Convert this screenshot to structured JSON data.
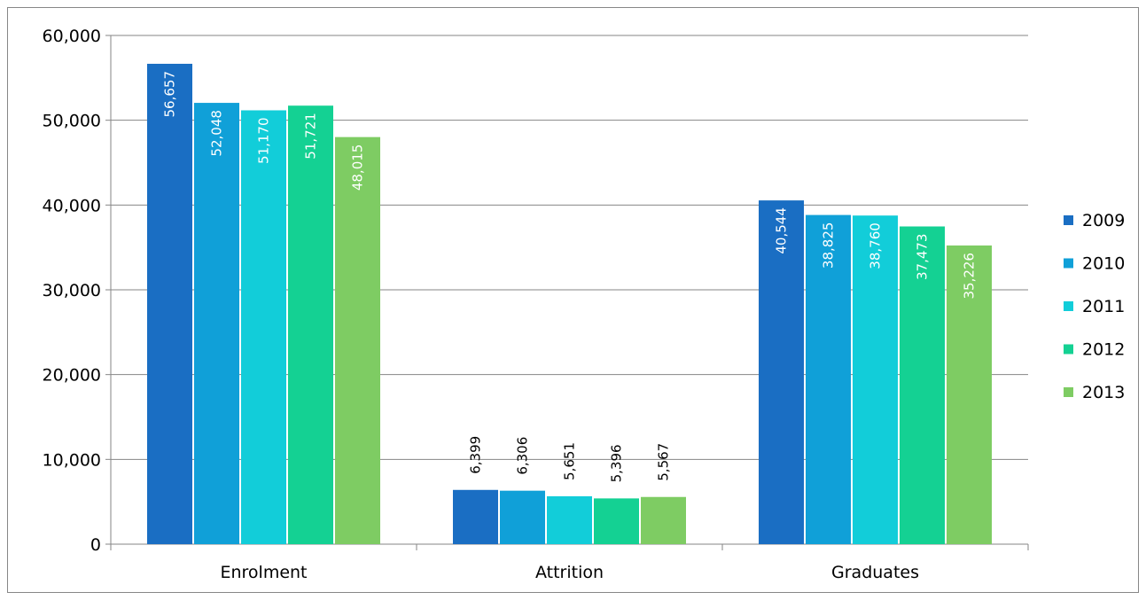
{
  "chart_data": {
    "type": "bar",
    "title": "",
    "xlabel": "",
    "ylabel": "",
    "categories": [
      "Enrolment",
      "Attrition",
      "Graduates"
    ],
    "series": [
      {
        "name": "2009",
        "color": "#1a6ec3",
        "values": [
          56657,
          6399,
          40544
        ],
        "labels": [
          "56,657",
          "6,399",
          "40,544"
        ]
      },
      {
        "name": "2010",
        "color": "#10a0d8",
        "values": [
          52048,
          6306,
          38825
        ],
        "labels": [
          "52,048",
          "6,306",
          "38,825"
        ]
      },
      {
        "name": "2011",
        "color": "#12cdd9",
        "values": [
          51170,
          5651,
          38760
        ],
        "labels": [
          "51,170",
          "5,651",
          "38,760"
        ]
      },
      {
        "name": "2012",
        "color": "#14d193",
        "values": [
          51721,
          5396,
          37473
        ],
        "labels": [
          "51,721",
          "5,396",
          "37,473"
        ]
      },
      {
        "name": "2013",
        "color": "#7ecc63",
        "values": [
          48015,
          5567,
          35226
        ],
        "labels": [
          "48,015",
          "5,567",
          "35,226"
        ]
      }
    ],
    "ylim": [
      0,
      60000
    ],
    "yticks": [
      0,
      10000,
      20000,
      30000,
      40000,
      50000,
      60000
    ],
    "ytick_labels": [
      "0",
      "10,000",
      "20,000",
      "30,000",
      "40,000",
      "50,000",
      "60,000"
    ],
    "grid": true,
    "legend_position": "right",
    "data_label_colors": {
      "inside": "#ffffff",
      "outside": "#000000"
    }
  }
}
